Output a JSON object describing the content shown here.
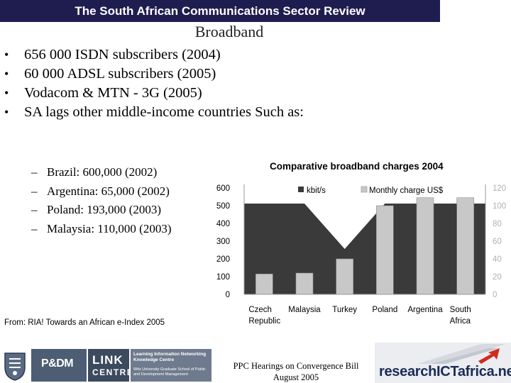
{
  "header": {
    "title": "The South African Communications Sector Review"
  },
  "slide": {
    "title": "Broadband"
  },
  "bullets": [
    "656 000 ISDN subscribers  (2004)",
    "60 000 ADSL subscribers (2005)",
    "Vodacom & MTN  -  3G  (2005)",
    "SA lags other middle-income countries Such as:"
  ],
  "sub_bullets": [
    "Brazil: 600,000 (2002)",
    "Argentina: 65,000 (2002)",
    "Poland: 193,000 (2003)",
    "Malaysia: 110,000 (2003)"
  ],
  "bullet_marker": "•",
  "sub_marker": "–",
  "source": "From: RIA! Towards an African e-Index 2005",
  "footer": {
    "line1": "PPC Hearings on Convergence Bill",
    "line2": "August 2005"
  },
  "logos": {
    "p_and_dm": "P&DM",
    "link_1": "LINK",
    "link_2": "CENTRE",
    "lin_text": "Learning Information Networking Knowledge Centre",
    "lin_sub": "Wits University Graduate School of Public and Development Management",
    "ria": "researchICTafrica.net"
  },
  "colors": {
    "header_bg": "#1f1d50",
    "area": "#3a3a3a",
    "bars": "#c8c8c8"
  },
  "chart_data": {
    "type": "bar",
    "title": "Comparative broadband charges 2004",
    "categories": [
      "Czech Republic",
      "Malaysia",
      "Turkey",
      "Poland",
      "Argentina",
      "South Africa"
    ],
    "category_lines": [
      [
        "Czech",
        "Republic"
      ],
      [
        "Malaysia"
      ],
      [
        "Turkey"
      ],
      [
        "Poland"
      ],
      [
        "Argentina"
      ],
      [
        "South",
        "Africa"
      ]
    ],
    "series": [
      {
        "name": "kbit/s",
        "type": "area",
        "axis": "left",
        "values": [
          512,
          512,
          256,
          512,
          512,
          512
        ]
      },
      {
        "name": "Monthly charge US$",
        "type": "bar",
        "axis": "right",
        "values": [
          23,
          24,
          40,
          100,
          109,
          109
        ]
      }
    ],
    "left_axis": {
      "min": 0,
      "max": 600,
      "ticks": [
        0,
        100,
        200,
        300,
        400,
        500,
        600
      ]
    },
    "right_axis": {
      "min": 0,
      "max": 120,
      "ticks": [
        0,
        20,
        40,
        60,
        80,
        100,
        120
      ]
    },
    "legend_position": "top",
    "grid": false
  }
}
